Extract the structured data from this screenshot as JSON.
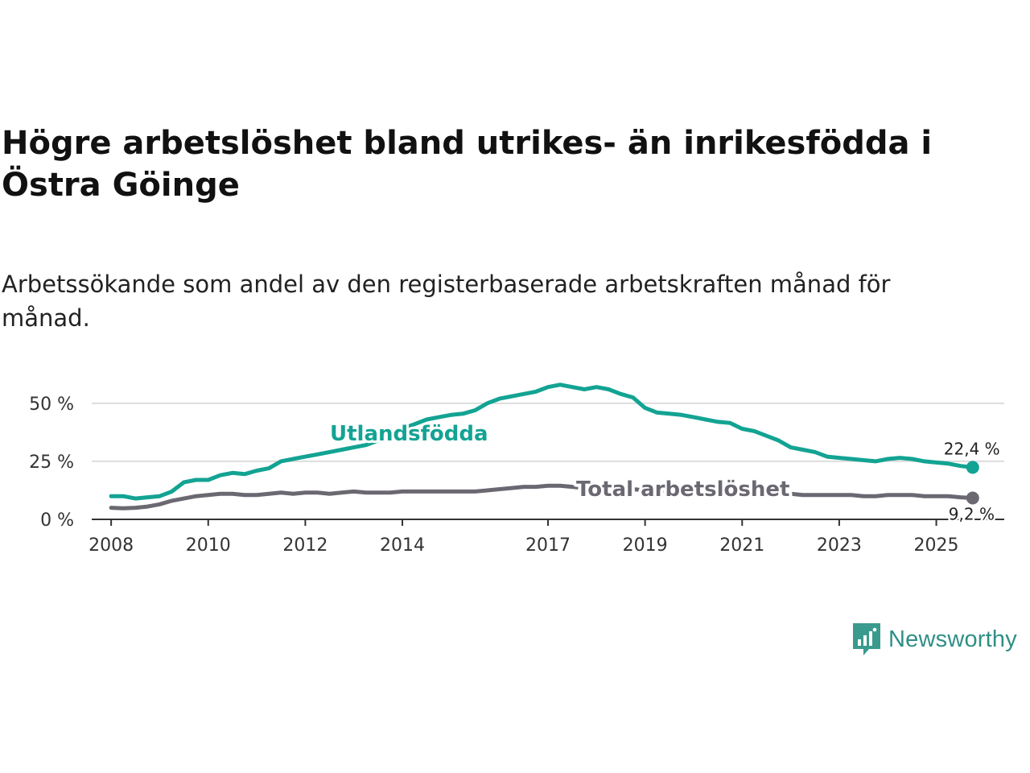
{
  "title": "Högre arbetslöshet bland utrikes- än inrikesfödda i Östra Göinge",
  "subtitle": "Arbetssökande som andel av den registerbaserade arbetskraften månad för månad.",
  "brand": {
    "name": "Newsworthy",
    "icon": "newsworthy-logo-icon",
    "color": "#3a9a8e"
  },
  "colors": {
    "utlandsfodda": "#13a393",
    "total": "#6b6872",
    "grid": "#dddddd",
    "axis": "#333333"
  },
  "chart_data": {
    "type": "line",
    "title": "Högre arbetslöshet bland utrikes- än inrikesfödda i Östra Göinge",
    "subtitle": "Arbetssökande som andel av den registerbaserade arbetskraften månad för månad.",
    "xlabel": "",
    "ylabel": "",
    "xlim": [
      2007.6,
      2026.4
    ],
    "ylim": [
      0,
      60
    ],
    "x_ticks": [
      2008,
      2010,
      2012,
      2014,
      2017,
      2019,
      2021,
      2023,
      2025
    ],
    "x_tick_labels": [
      "2008",
      "2010",
      "2012",
      "2014",
      "2017",
      "2019",
      "2021",
      "2023",
      "2025"
    ],
    "y_ticks": [
      0,
      25,
      50
    ],
    "y_tick_labels": [
      "0 %",
      "25 %",
      "50 %"
    ],
    "grid": true,
    "series": [
      {
        "name": "Utlandsfödda",
        "label": "Utlandsfödda",
        "color": "#13a393",
        "end_label": "22,4 %",
        "points": [
          [
            2008.0,
            10
          ],
          [
            2008.25,
            10
          ],
          [
            2008.5,
            9
          ],
          [
            2008.75,
            9.5
          ],
          [
            2009.0,
            10
          ],
          [
            2009.25,
            12
          ],
          [
            2009.5,
            16
          ],
          [
            2009.75,
            17
          ],
          [
            2010.0,
            17
          ],
          [
            2010.25,
            19
          ],
          [
            2010.5,
            20
          ],
          [
            2010.75,
            19.5
          ],
          [
            2011.0,
            21
          ],
          [
            2011.25,
            22
          ],
          [
            2011.5,
            25
          ],
          [
            2011.75,
            26
          ],
          [
            2012.0,
            27
          ],
          [
            2012.25,
            28
          ],
          [
            2012.5,
            29
          ],
          [
            2012.75,
            30
          ],
          [
            2013.0,
            31
          ],
          [
            2013.25,
            32
          ],
          [
            2013.5,
            34
          ],
          [
            2013.75,
            36
          ],
          [
            2014.0,
            39
          ],
          [
            2014.25,
            41
          ],
          [
            2014.5,
            43
          ],
          [
            2014.75,
            44
          ],
          [
            2015.0,
            45
          ],
          [
            2015.25,
            45.5
          ],
          [
            2015.5,
            47
          ],
          [
            2015.75,
            50
          ],
          [
            2016.0,
            52
          ],
          [
            2016.25,
            53
          ],
          [
            2016.5,
            54
          ],
          [
            2016.75,
            55
          ],
          [
            2017.0,
            57
          ],
          [
            2017.25,
            58
          ],
          [
            2017.5,
            57
          ],
          [
            2017.75,
            56
          ],
          [
            2018.0,
            57
          ],
          [
            2018.25,
            56
          ],
          [
            2018.5,
            54
          ],
          [
            2018.75,
            52.5
          ],
          [
            2019.0,
            48
          ],
          [
            2019.25,
            46
          ],
          [
            2019.5,
            45.5
          ],
          [
            2019.75,
            45
          ],
          [
            2020.0,
            44
          ],
          [
            2020.25,
            43
          ],
          [
            2020.5,
            42
          ],
          [
            2020.75,
            41.5
          ],
          [
            2021.0,
            39
          ],
          [
            2021.25,
            38
          ],
          [
            2021.5,
            36
          ],
          [
            2021.75,
            34
          ],
          [
            2022.0,
            31
          ],
          [
            2022.25,
            30
          ],
          [
            2022.5,
            29
          ],
          [
            2022.75,
            27
          ],
          [
            2023.0,
            26.5
          ],
          [
            2023.25,
            26
          ],
          [
            2023.5,
            25.5
          ],
          [
            2023.75,
            25
          ],
          [
            2024.0,
            26
          ],
          [
            2024.25,
            26.5
          ],
          [
            2024.5,
            26
          ],
          [
            2024.75,
            25
          ],
          [
            2025.0,
            24.5
          ],
          [
            2025.25,
            24
          ],
          [
            2025.5,
            23
          ],
          [
            2025.75,
            22.4
          ]
        ]
      },
      {
        "name": "Total arbetslöshet",
        "label": "Total arbetslöshet",
        "color": "#6b6872",
        "end_label": "9,2 %",
        "points": [
          [
            2008.0,
            5
          ],
          [
            2008.25,
            4.8
          ],
          [
            2008.5,
            5
          ],
          [
            2008.75,
            5.5
          ],
          [
            2009.0,
            6.5
          ],
          [
            2009.25,
            8
          ],
          [
            2009.5,
            9
          ],
          [
            2009.75,
            10
          ],
          [
            2010.0,
            10.5
          ],
          [
            2010.25,
            11
          ],
          [
            2010.5,
            11
          ],
          [
            2010.75,
            10.5
          ],
          [
            2011.0,
            10.5
          ],
          [
            2011.25,
            11
          ],
          [
            2011.5,
            11.5
          ],
          [
            2011.75,
            11
          ],
          [
            2012.0,
            11.5
          ],
          [
            2012.25,
            11.5
          ],
          [
            2012.5,
            11
          ],
          [
            2012.75,
            11.5
          ],
          [
            2013.0,
            12
          ],
          [
            2013.25,
            11.5
          ],
          [
            2013.5,
            11.5
          ],
          [
            2013.75,
            11.5
          ],
          [
            2014.0,
            12
          ],
          [
            2014.25,
            12
          ],
          [
            2014.5,
            12
          ],
          [
            2014.75,
            12
          ],
          [
            2015.0,
            12
          ],
          [
            2015.25,
            12
          ],
          [
            2015.5,
            12
          ],
          [
            2015.75,
            12.5
          ],
          [
            2016.0,
            13
          ],
          [
            2016.25,
            13.5
          ],
          [
            2016.5,
            14
          ],
          [
            2016.75,
            14
          ],
          [
            2017.0,
            14.5
          ],
          [
            2017.25,
            14.5
          ],
          [
            2017.5,
            14
          ],
          [
            2017.75,
            13.5
          ],
          [
            2018.0,
            13.5
          ],
          [
            2018.25,
            13.5
          ],
          [
            2018.5,
            13
          ],
          [
            2018.75,
            13
          ],
          [
            2019.0,
            12.5
          ],
          [
            2019.25,
            12.5
          ],
          [
            2019.5,
            12
          ],
          [
            2019.75,
            12
          ],
          [
            2020.0,
            12
          ],
          [
            2020.25,
            12
          ],
          [
            2020.5,
            12
          ],
          [
            2020.75,
            11.5
          ],
          [
            2021.0,
            11.5
          ],
          [
            2021.25,
            11.5
          ],
          [
            2021.5,
            11
          ],
          [
            2021.75,
            11
          ],
          [
            2022.0,
            11
          ],
          [
            2022.25,
            10.5
          ],
          [
            2022.5,
            10.5
          ],
          [
            2022.75,
            10.5
          ],
          [
            2023.0,
            10.5
          ],
          [
            2023.25,
            10.5
          ],
          [
            2023.5,
            10
          ],
          [
            2023.75,
            10
          ],
          [
            2024.0,
            10.5
          ],
          [
            2024.25,
            10.5
          ],
          [
            2024.5,
            10.5
          ],
          [
            2024.75,
            10
          ],
          [
            2025.0,
            10
          ],
          [
            2025.25,
            10
          ],
          [
            2025.5,
            9.5
          ],
          [
            2025.75,
            9.2
          ]
        ]
      }
    ]
  }
}
